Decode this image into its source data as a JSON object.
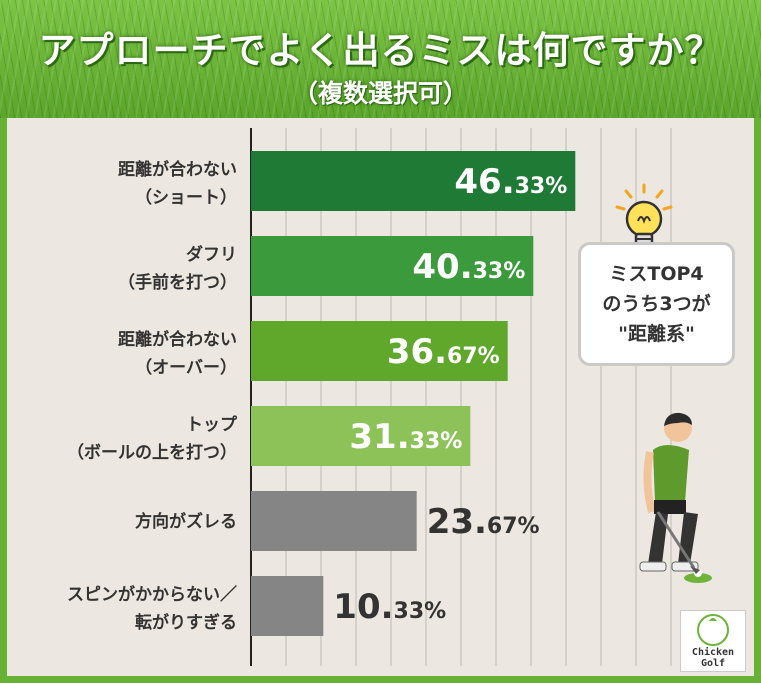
{
  "header": {
    "title": "アプローチでよく出るミスは何ですか？",
    "subtitle": "（複数選択可）"
  },
  "chart_data": {
    "type": "bar",
    "orientation": "horizontal",
    "categories": [
      [
        "距離が合わない",
        "（ショート）"
      ],
      [
        "ダフリ",
        "（手前を打つ）"
      ],
      [
        "距離が合わない",
        "（オーバー）"
      ],
      [
        "トップ",
        "（ボールの上を打つ）"
      ],
      [
        "方向がズレる"
      ],
      [
        "スピンがかからない／",
        "転がりすぎる"
      ]
    ],
    "values": [
      46.33,
      40.33,
      36.67,
      31.33,
      23.67,
      10.33
    ],
    "value_labels": [
      {
        "int": "46.",
        "dec": "33%"
      },
      {
        "int": "40.",
        "dec": "33%"
      },
      {
        "int": "36.",
        "dec": "67%"
      },
      {
        "int": "31.",
        "dec": "33%"
      },
      {
        "int": "23.",
        "dec": "67%"
      },
      {
        "int": "10.",
        "dec": "33%"
      }
    ],
    "bar_colors": [
      "#1f7a36",
      "#3a9a3c",
      "#5fa82c",
      "#8cc257",
      "#858585",
      "#858585"
    ],
    "label_inside": [
      true,
      true,
      true,
      true,
      false,
      false
    ],
    "xlim": [
      0,
      60
    ],
    "grid": true
  },
  "callout": {
    "lines": [
      "ミスTOP4",
      "のうち3つが",
      "\"距離系\""
    ]
  },
  "logo": {
    "line1": "Chicken",
    "line2": "Golf"
  },
  "colors": {
    "grass": "#67b234",
    "panel": "#ece8e1",
    "text": "#333333"
  }
}
